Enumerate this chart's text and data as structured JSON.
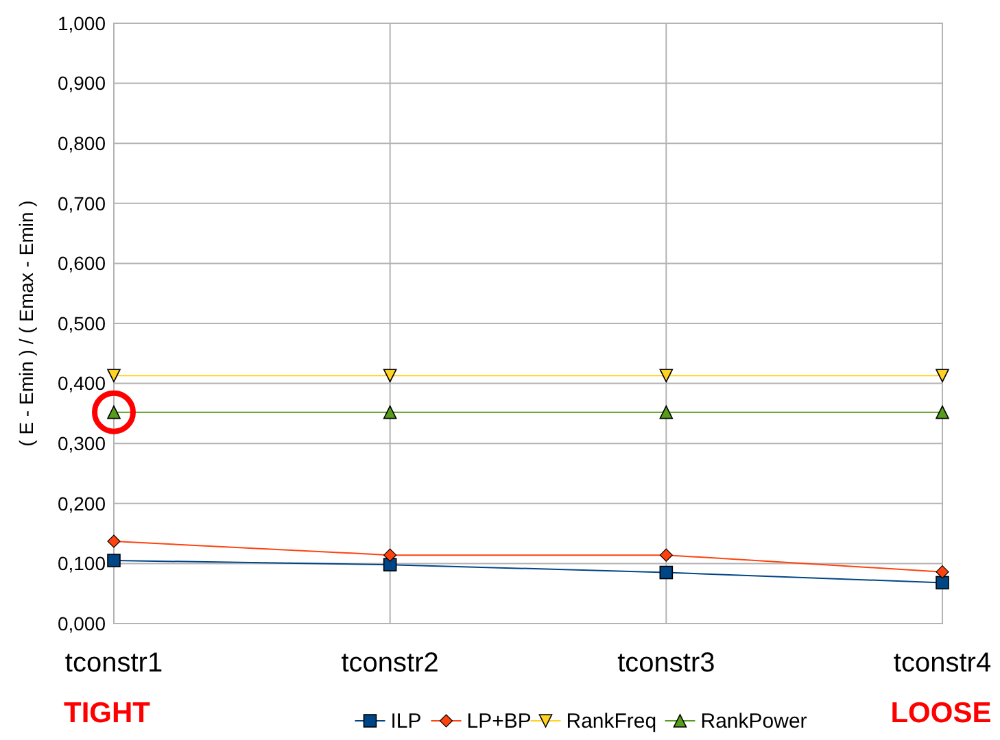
{
  "chart_data": {
    "type": "line",
    "ylabel": "( E - Emin ) / ( Emax - Emin )",
    "categories": [
      "tconstr1",
      "tconstr2",
      "tconstr3",
      "tconstr4"
    ],
    "series": [
      {
        "name": "ILP",
        "color": "#004586",
        "marker": "square",
        "values": [
          0.105,
          0.098,
          0.085,
          0.068
        ]
      },
      {
        "name": "LP+BP",
        "color": "#ff420e",
        "marker": "diamond",
        "values": [
          0.137,
          0.114,
          0.114,
          0.086
        ]
      },
      {
        "name": "RankFreq",
        "color": "#ffd320",
        "marker": "triangle-down",
        "values": [
          0.413,
          0.413,
          0.413,
          0.413
        ]
      },
      {
        "name": "RankPower",
        "color": "#579d1c",
        "marker": "triangle",
        "values": [
          0.352,
          0.352,
          0.352,
          0.352
        ]
      }
    ],
    "ylim": [
      0,
      1
    ],
    "yticks": [
      {
        "value": 0,
        "label": "0,000"
      },
      {
        "value": 0.1,
        "label": "0,100"
      },
      {
        "value": 0.2,
        "label": "0,200"
      },
      {
        "value": 0.3,
        "label": "0,300"
      },
      {
        "value": 0.4,
        "label": "0,400"
      },
      {
        "value": 0.5,
        "label": "0,500"
      },
      {
        "value": 0.6,
        "label": "0,600"
      },
      {
        "value": 0.7,
        "label": "0,700"
      },
      {
        "value": 0.8,
        "label": "0,800"
      },
      {
        "value": 0.9,
        "label": "0,900"
      },
      {
        "value": 1,
        "label": "1,000"
      }
    ],
    "grid": true,
    "legend": "bottom",
    "annotations": [
      "TIGHT",
      "LOOSE"
    ]
  }
}
